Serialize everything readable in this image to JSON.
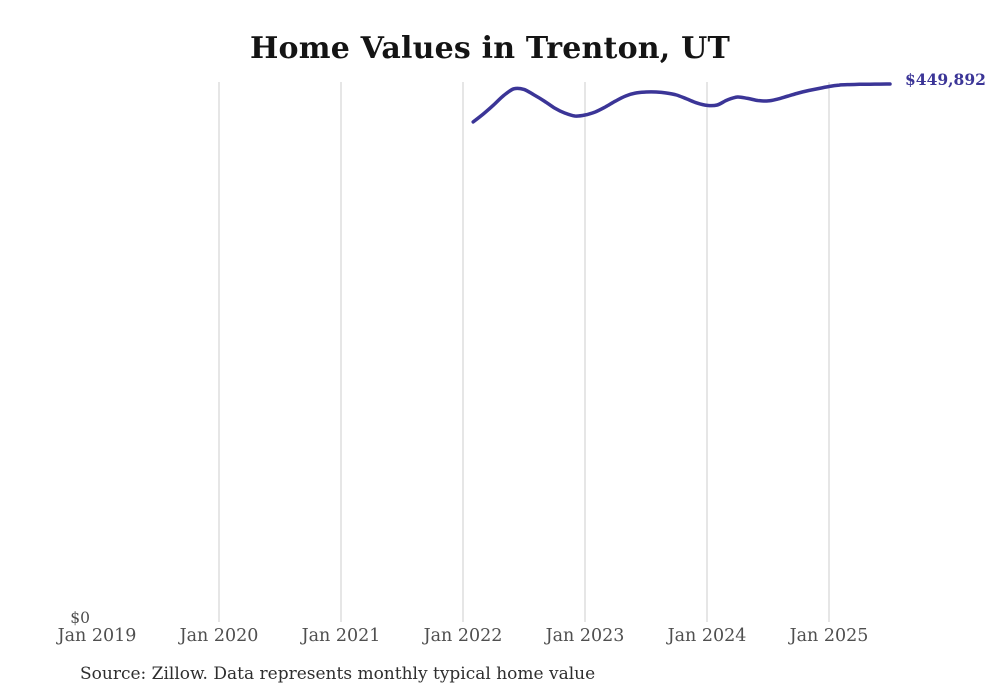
{
  "title": "Home Values in Trenton, UT",
  "source_note": "Source: Zillow. Data represents monthly typical home value",
  "y_axis": {
    "zero_label": "$0"
  },
  "x_axis": {
    "ticks": [
      {
        "label": "Jan 2019",
        "year": 2019,
        "gridline": false
      },
      {
        "label": "Jan 2020",
        "year": 2020,
        "gridline": true
      },
      {
        "label": "Jan 2021",
        "year": 2021,
        "gridline": true
      },
      {
        "label": "Jan 2022",
        "year": 2022,
        "gridline": true
      },
      {
        "label": "Jan 2023",
        "year": 2023,
        "gridline": true
      },
      {
        "label": "Jan 2024",
        "year": 2024,
        "gridline": true
      },
      {
        "label": "Jan 2025",
        "year": 2025,
        "gridline": true
      }
    ]
  },
  "series": {
    "end_label": "$449,892"
  },
  "colors": {
    "accent": "#3b3597",
    "line": "#3b3597",
    "grid": "#cccccc",
    "axis_text": "#4f4f4f",
    "title_text": "#141414",
    "source_text": "#2e2e2e"
  },
  "chart_data": {
    "type": "line",
    "title": "Home Values in Trenton, UT",
    "xlabel": "",
    "ylabel": "",
    "ylim": [
      0,
      470000
    ],
    "grid": "vertical-only",
    "legend": "none",
    "x_tick_labels": [
      "Jan 2019",
      "Jan 2020",
      "Jan 2021",
      "Jan 2022",
      "Jan 2023",
      "Jan 2024",
      "Jan 2025"
    ],
    "end_annotation": "$449,892",
    "x": [
      "Feb 2022",
      "Mar 2022",
      "Apr 2022",
      "May 2022",
      "Jun 2022",
      "Jul 2022",
      "Aug 2022",
      "Sep 2022",
      "Oct 2022",
      "Nov 2022",
      "Dec 2022",
      "Jan 2023",
      "Feb 2023",
      "Mar 2023",
      "Apr 2023",
      "May 2023",
      "Jun 2023",
      "Jul 2023",
      "Aug 2023",
      "Sep 2023",
      "Oct 2023",
      "Nov 2023",
      "Dec 2023",
      "Jan 2024",
      "Feb 2024",
      "Mar 2024",
      "Apr 2024",
      "May 2024",
      "Jun 2024",
      "Jul 2024",
      "Aug 2024",
      "Sep 2024",
      "Oct 2024",
      "Nov 2024",
      "Dec 2024",
      "Jan 2025",
      "Feb 2025",
      "Mar 2025",
      "Apr 2025",
      "May 2025",
      "Jun 2025",
      "Jul 2025"
    ],
    "values": [
      417900,
      424600,
      432100,
      440200,
      445800,
      445300,
      440600,
      435500,
      429600,
      425400,
      422900,
      423700,
      426300,
      430500,
      435500,
      439800,
      442300,
      443100,
      443100,
      442300,
      440600,
      437300,
      433900,
      431800,
      432200,
      436400,
      438900,
      437700,
      436000,
      435600,
      437300,
      439800,
      442300,
      444400,
      446100,
      447800,
      449000,
      449400,
      449600,
      449700,
      449800,
      449892
    ]
  }
}
